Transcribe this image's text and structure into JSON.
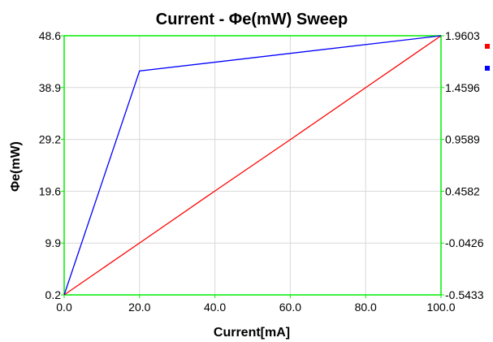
{
  "chart_data": {
    "type": "line",
    "title": "Current - Φe(mW) Sweep",
    "xlabel": "Current[mA]",
    "ylabel": "Φe(mW)",
    "xlim": [
      0,
      100
    ],
    "ylim": [
      0.2,
      48.6
    ],
    "y2lim": [
      -0.5433,
      1.9603
    ],
    "x_ticks": [
      "0.0",
      "20.0",
      "40.0",
      "60.0",
      "80.0",
      "100.0"
    ],
    "y_ticks": [
      "0.2",
      "9.9",
      "19.6",
      "29.2",
      "38.9",
      "48.6"
    ],
    "y2_ticks": [
      "-0.5433",
      "-0.0426",
      "0.4582",
      "0.9589",
      "1.4596",
      "1.9603"
    ],
    "grid": true,
    "legend": "right",
    "series": [
      {
        "axis": "left",
        "color": "#ff0000",
        "x": [
          0,
          20,
          40,
          60,
          80,
          100
        ],
        "y": [
          0.2,
          9.9,
          19.6,
          29.2,
          38.9,
          48.6
        ]
      },
      {
        "axis": "right",
        "color": "#0000ff",
        "x": [
          0,
          20,
          100
        ],
        "y": [
          -0.5433,
          1.6195,
          1.9603
        ]
      }
    ]
  }
}
